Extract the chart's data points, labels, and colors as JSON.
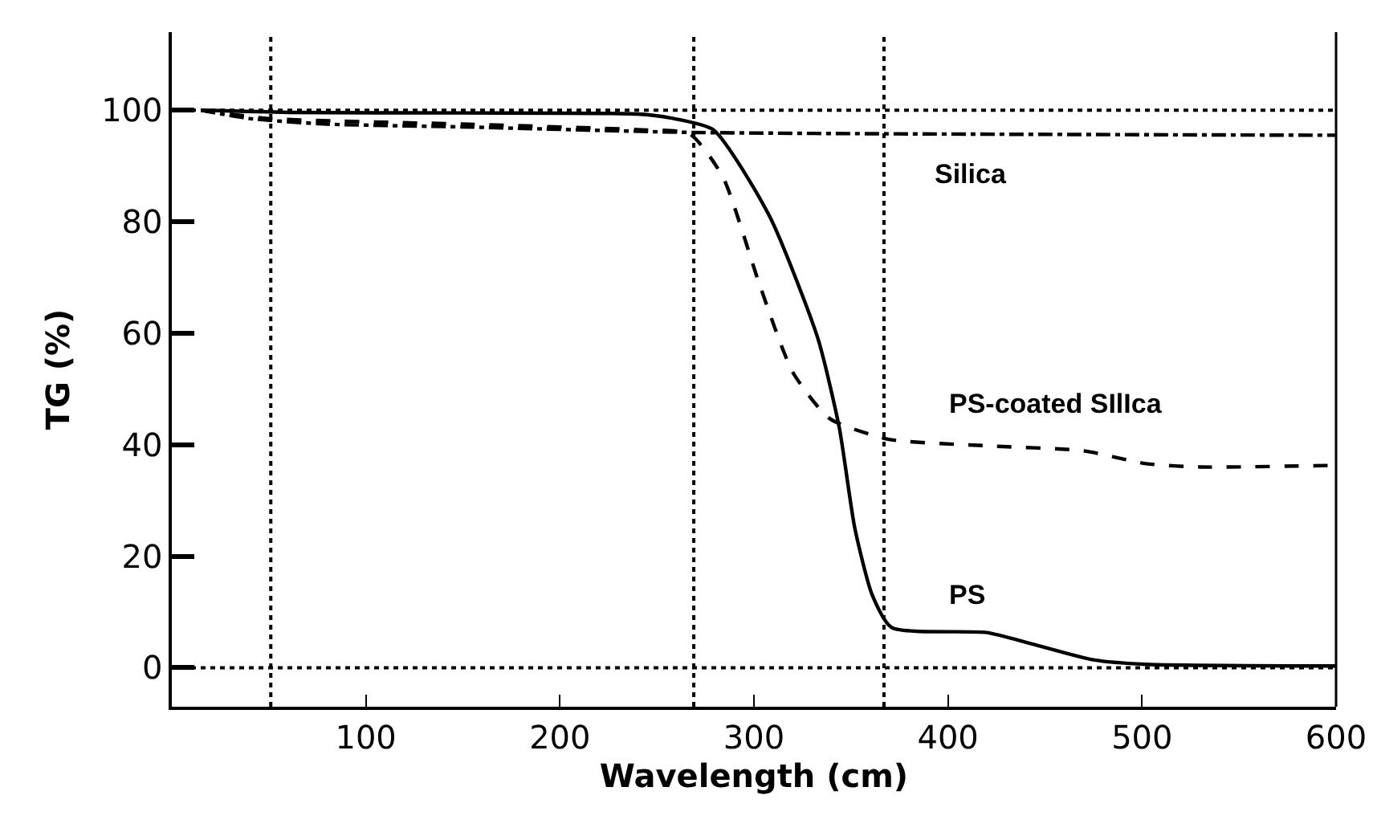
{
  "chart_data": {
    "type": "line",
    "xlabel": "Wavelength (cm)",
    "ylabel": "TG (%)",
    "xlim": [
      0,
      600
    ],
    "xticks": [
      100,
      200,
      300,
      400,
      500,
      600
    ],
    "ylim": [
      -7,
      114
    ],
    "yticks": [
      0,
      20,
      40,
      60,
      80,
      100
    ],
    "grid": false,
    "legend": false,
    "marker": "none",
    "series": [
      {
        "name": "Silica",
        "color": "#000000",
        "line_style": "dashdot",
        "x": [
          15,
          40,
          80,
          150,
          270,
          600
        ],
        "values": [
          100,
          98.5,
          97.5,
          97,
          96,
          95.5
        ]
      },
      {
        "name": "PS",
        "color": "#000000",
        "line_style": "solid",
        "x": [
          15,
          60,
          150,
          240,
          257,
          279,
          308,
          333,
          344,
          352,
          361,
          371,
          420,
          443,
          475,
          502,
          600
        ],
        "values": [
          100,
          99.6,
          99.5,
          99.3,
          98.6,
          96.5,
          81,
          59,
          43,
          25,
          13,
          7.2,
          6.3,
          4.3,
          1.4,
          0.6,
          0.3
        ]
      },
      {
        "name": "PS-coated SIlIca",
        "color": "#000000",
        "line_style": "dashed",
        "x": [
          15,
          50,
          150,
          240,
          267,
          284,
          303,
          320,
          339,
          369,
          420,
          470,
          502,
          530,
          600
        ],
        "values": [
          100,
          98.5,
          97.5,
          96.5,
          95.7,
          88,
          68.6,
          53,
          44.7,
          41,
          39.8,
          38.9,
          36.6,
          36,
          36.3
        ]
      }
    ],
    "ref_lines": [
      {
        "axis": "x",
        "value": 51,
        "color": "#000000",
        "line_style": "dotted"
      },
      {
        "axis": "x",
        "value": 269,
        "color": "#000000",
        "line_style": "dotted"
      },
      {
        "axis": "x",
        "value": 367,
        "color": "#000000",
        "line_style": "dotted"
      },
      {
        "axis": "y",
        "value": 100,
        "color": "#000000",
        "line_style": "dotted"
      },
      {
        "axis": "y",
        "value": 0,
        "color": "#000000",
        "line_style": "dotted"
      }
    ]
  }
}
